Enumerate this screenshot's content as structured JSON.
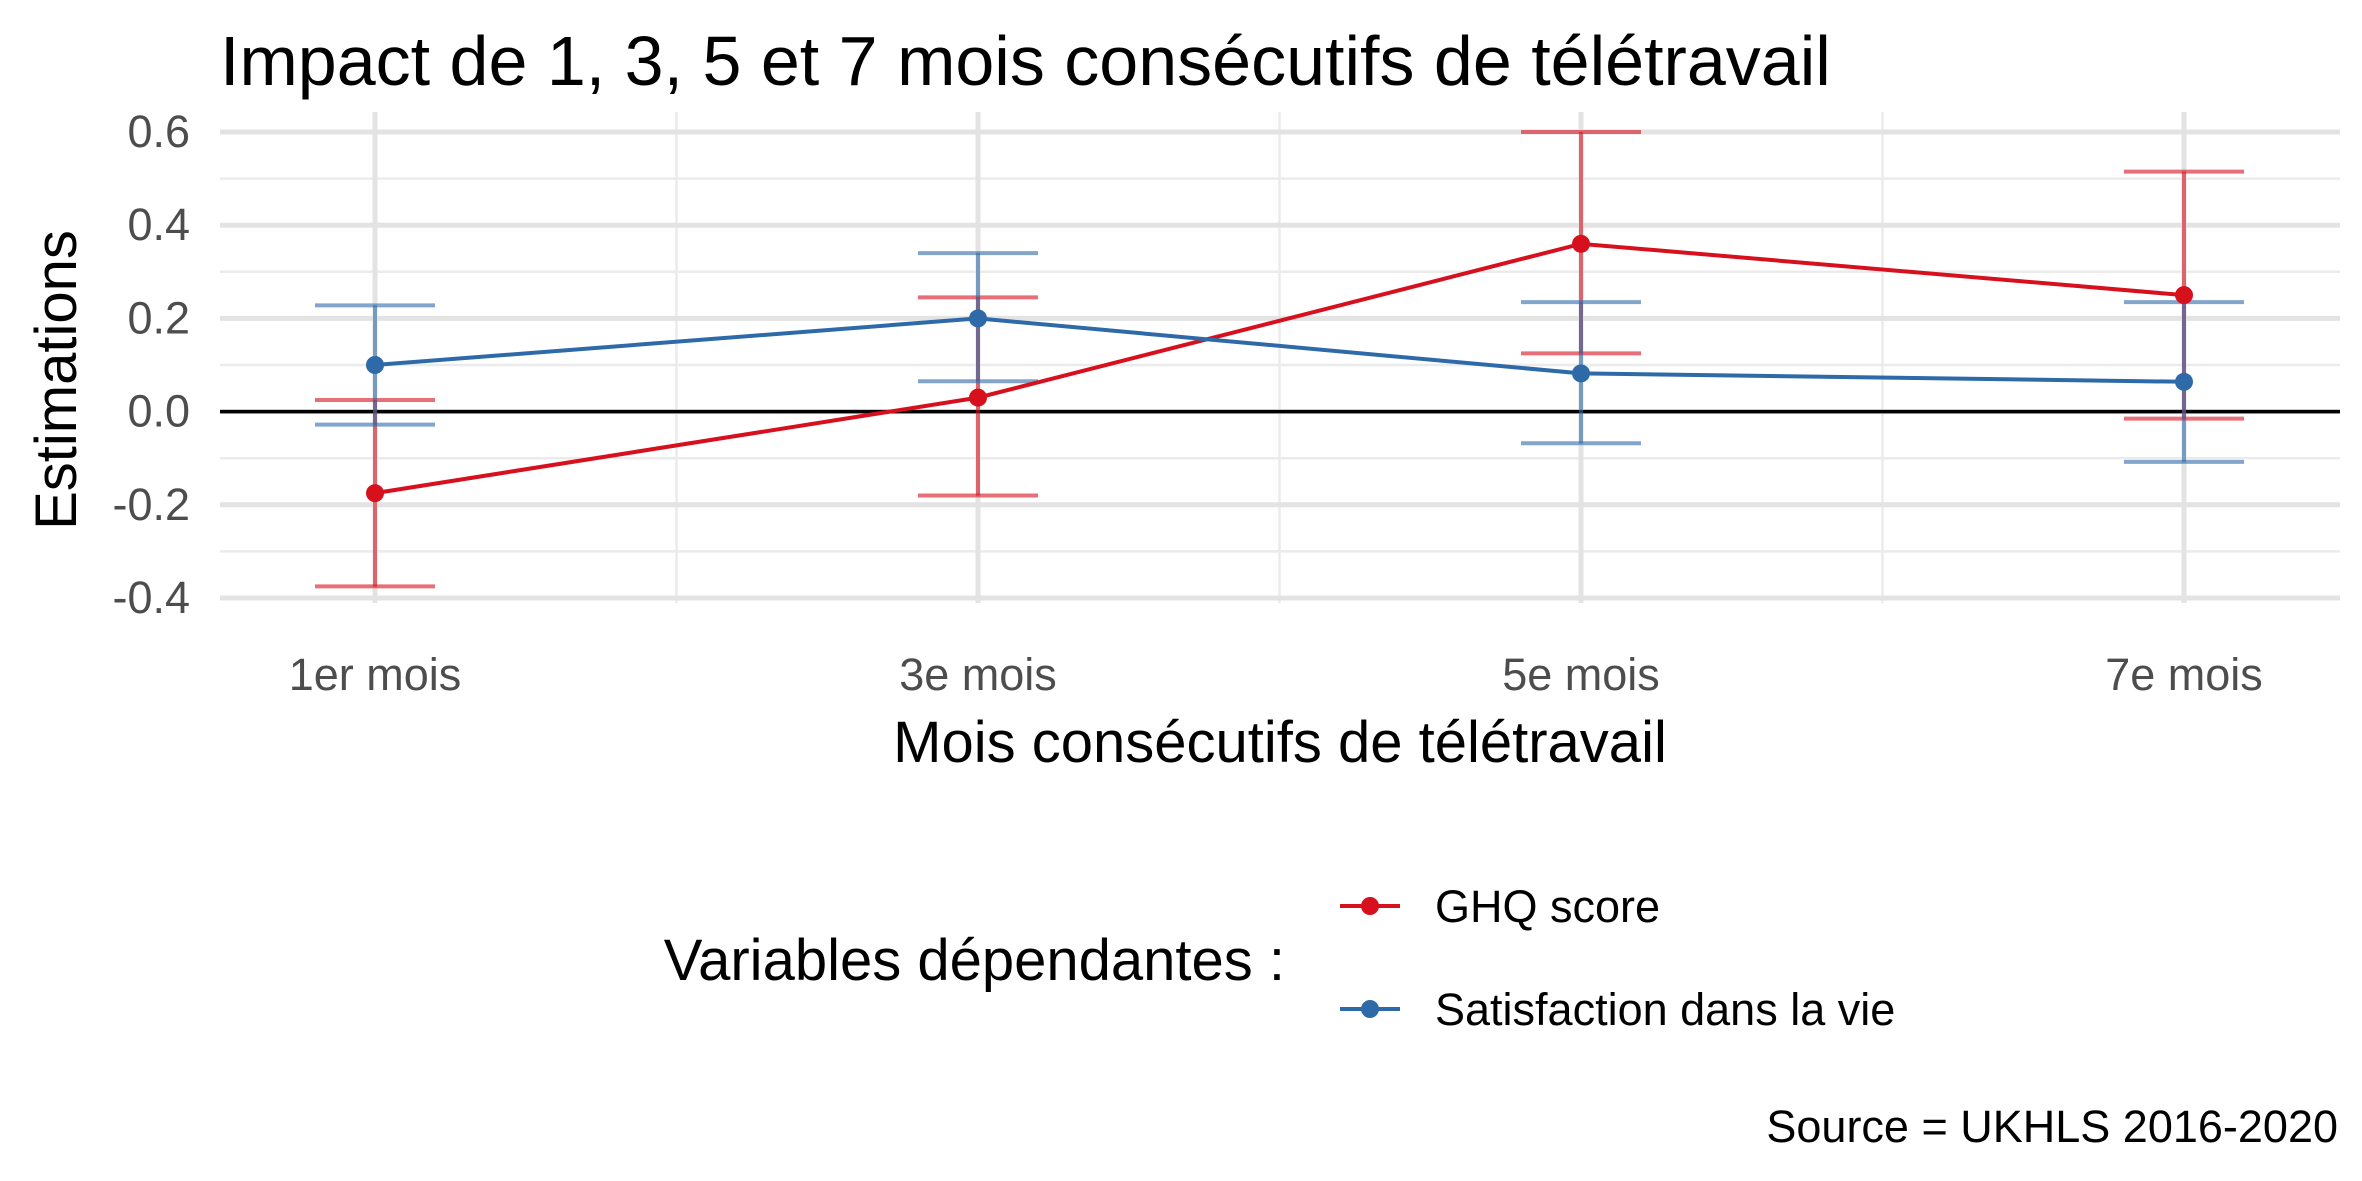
{
  "chart_data": {
    "type": "line",
    "title": "Impact de 1, 3, 5 et 7 mois consécutifs de télétravail",
    "xlabel": "Mois consécutifs de télétravail",
    "ylabel": "Estimations",
    "categories": [
      "1er mois",
      "3e mois",
      "5e mois",
      "7e mois"
    ],
    "ylim": [
      -0.4,
      0.6
    ],
    "yticks": [
      -0.4,
      -0.2,
      0.0,
      0.2,
      0.4,
      0.6
    ],
    "ytick_labels": [
      "-0.4",
      "-0.2",
      "0.0",
      "0.2",
      "0.4",
      "0.6"
    ],
    "reference_line": 0,
    "grid": true,
    "legend_title": "Variables dépendantes :",
    "legend_position": "bottom",
    "series": [
      {
        "name": "GHQ score",
        "color": "#d7101e",
        "values": [
          -0.175,
          0.03,
          0.36,
          0.25
        ],
        "lower": [
          -0.375,
          -0.18,
          0.125,
          -0.015
        ],
        "upper": [
          0.025,
          0.245,
          0.6,
          0.515
        ]
      },
      {
        "name": "Satisfaction dans la vie",
        "color": "#2e6aa8",
        "values": [
          0.1,
          0.2,
          0.082,
          0.064
        ],
        "lower": [
          -0.028,
          0.065,
          -0.068,
          -0.108
        ],
        "upper": [
          0.228,
          0.34,
          0.235,
          0.235
        ]
      }
    ],
    "caption": "Source = UKHLS 2016-2020"
  }
}
